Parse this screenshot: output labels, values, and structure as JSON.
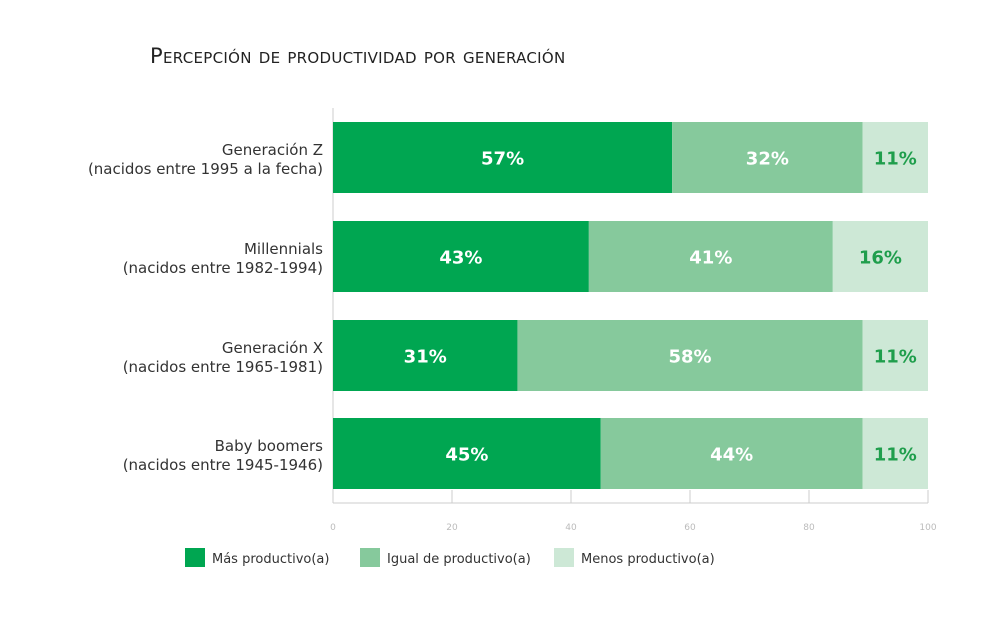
{
  "chart_data": {
    "type": "bar",
    "orientation": "horizontal",
    "stacked": true,
    "title": "Percepción de productividad por generación",
    "categories": [
      [
        "Generación Z",
        "(nacidos entre 1995 a la fecha)"
      ],
      [
        "Millennials",
        "(nacidos entre 1982-1994)"
      ],
      [
        "Generación X",
        "(nacidos entre 1965-1981)"
      ],
      [
        "Baby boomers",
        "(nacidos entre 1945-1946)"
      ]
    ],
    "series": [
      {
        "name": "Más productivo(a)",
        "values": [
          57,
          43,
          31,
          45
        ],
        "color": "#00a651",
        "label_color": "#ffffff"
      },
      {
        "name": "Igual de productivo(a)",
        "values": [
          32,
          41,
          58,
          44
        ],
        "color": "#86c99c",
        "label_color": "#ffffff"
      },
      {
        "name": "Menos productivo(a)",
        "values": [
          11,
          16,
          11,
          11
        ],
        "color": "#cde8d6",
        "label_color": "#1f9e4c"
      }
    ],
    "xlim": [
      0,
      100
    ],
    "xticks": [
      0,
      20,
      40,
      60,
      80,
      100
    ],
    "value_suffix": "%",
    "grid": false,
    "legend_position": "bottom-left"
  }
}
